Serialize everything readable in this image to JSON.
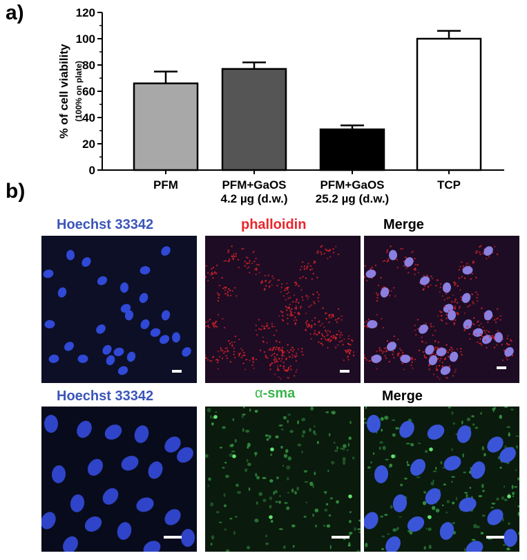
{
  "panels": {
    "a": "a)",
    "b": "b)"
  },
  "chart_data": {
    "type": "bar",
    "categories": [
      [
        "PFM"
      ],
      [
        "PFM+GaOS",
        "4.2 µg (d.w.)"
      ],
      [
        "PFM+GaOS",
        "25.2 µg (d.w.)"
      ],
      [
        "TCP"
      ]
    ],
    "values": [
      66,
      77,
      31,
      100
    ],
    "errors": [
      9,
      5,
      3,
      6
    ],
    "bar_colors": [
      "#a8a8a8",
      "#555555",
      "#000000",
      "#ffffff"
    ],
    "ylabel": "% of cell viability",
    "ylabel_sub": "(100% on plate)",
    "ylim": [
      0,
      120
    ],
    "yticks": [
      0,
      20,
      40,
      60,
      80,
      100,
      120
    ],
    "grid": false
  },
  "micrographs": {
    "row1": [
      {
        "label": "Hoechst 33342",
        "label_color": "#3b55b8"
      },
      {
        "label": "phalloidin",
        "label_color": "#e8262c"
      },
      {
        "label": "Merge",
        "label_color": "#000000"
      }
    ],
    "row2": [
      {
        "label": "Hoechst 33342",
        "label_color": "#3b55b8"
      },
      {
        "label_prefix": "α",
        "label": "-sma",
        "label_color": "#39b54a"
      },
      {
        "label": "Merge",
        "label_color": "#000000"
      }
    ]
  }
}
